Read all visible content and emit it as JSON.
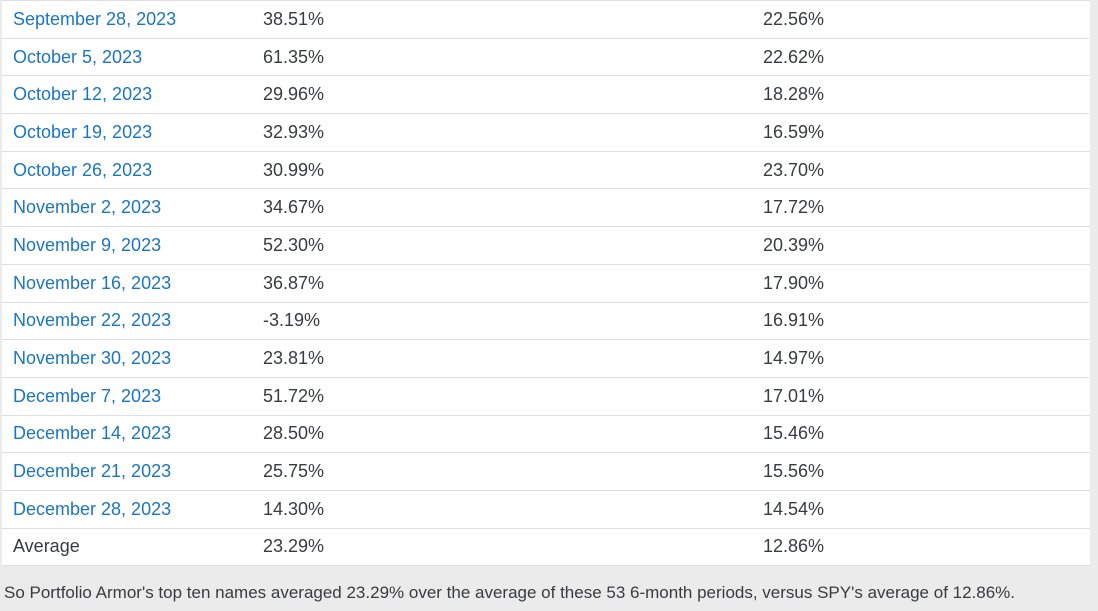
{
  "table": {
    "rows": [
      {
        "date": "September 28, 2023",
        "top_ten": "38.51%",
        "spy": "22.56%"
      },
      {
        "date": "October 5, 2023",
        "top_ten": "61.35%",
        "spy": "22.62%"
      },
      {
        "date": "October 12, 2023",
        "top_ten": "29.96%",
        "spy": "18.28%"
      },
      {
        "date": "October 19, 2023",
        "top_ten": "32.93%",
        "spy": "16.59%"
      },
      {
        "date": "October 26, 2023",
        "top_ten": "30.99%",
        "spy": "23.70%"
      },
      {
        "date": "November 2, 2023",
        "top_ten": "34.67%",
        "spy": "17.72%"
      },
      {
        "date": "November 9, 2023",
        "top_ten": "52.30%",
        "spy": "20.39%"
      },
      {
        "date": "November 16, 2023",
        "top_ten": "36.87%",
        "spy": "17.90%"
      },
      {
        "date": "November 22, 2023",
        "top_ten": "-3.19%",
        "spy": "16.91%"
      },
      {
        "date": "November 30, 2023",
        "top_ten": "23.81%",
        "spy": "14.97%"
      },
      {
        "date": "December 7, 2023",
        "top_ten": "51.72%",
        "spy": "17.01%"
      },
      {
        "date": "December 14, 2023",
        "top_ten": "28.50%",
        "spy": "15.46%"
      },
      {
        "date": "December 21, 2023",
        "top_ten": "25.75%",
        "spy": "15.56%"
      },
      {
        "date": "December 28, 2023",
        "top_ten": "14.30%",
        "spy": "14.54%"
      }
    ],
    "average": {
      "label": "Average",
      "top_ten": "23.29%",
      "spy": "12.86%"
    }
  },
  "footer": {
    "text": "So Portfolio Armor's top ten names averaged 23.29% over the average of these 53 6-month periods, versus SPY's average of 12.86%."
  },
  "colors": {
    "link_blue": "#1b76c0",
    "text_dark": "#383b3f",
    "row_border": "#dddde3",
    "page_background": "#ebebeb",
    "table_background": "#ffffff"
  },
  "chart_data": {
    "type": "table",
    "columns": [
      "date",
      "top_ten_return",
      "spy_return"
    ],
    "rows": [
      [
        "September 28, 2023",
        "38.51%",
        "22.56%"
      ],
      [
        "October 5, 2023",
        "61.35%",
        "22.62%"
      ],
      [
        "October 12, 2023",
        "29.96%",
        "18.28%"
      ],
      [
        "October 19, 2023",
        "32.93%",
        "16.59%"
      ],
      [
        "October 26, 2023",
        "30.99%",
        "23.70%"
      ],
      [
        "November 2, 2023",
        "34.67%",
        "17.72%"
      ],
      [
        "November 9, 2023",
        "52.30%",
        "20.39%"
      ],
      [
        "November 16, 2023",
        "36.87%",
        "17.90%"
      ],
      [
        "November 22, 2023",
        "-3.19%",
        "16.91%"
      ],
      [
        "November 30, 2023",
        "23.81%",
        "14.97%"
      ],
      [
        "December 7, 2023",
        "51.72%",
        "17.01%"
      ],
      [
        "December 14, 2023",
        "28.50%",
        "15.46%"
      ],
      [
        "December 21, 2023",
        "25.75%",
        "15.56%"
      ],
      [
        "December 28, 2023",
        "14.30%",
        "14.54%"
      ],
      [
        "Average",
        "23.29%",
        "12.86%"
      ]
    ]
  }
}
